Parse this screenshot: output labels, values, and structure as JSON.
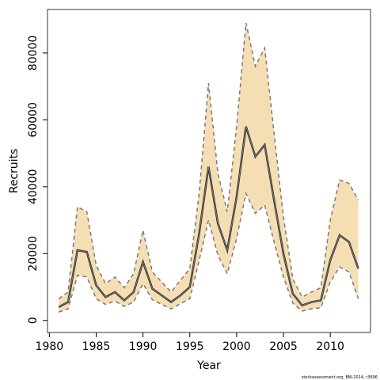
{
  "chart_data": {
    "type": "line",
    "xlabel": "Year",
    "ylabel": "Recruits",
    "footnote": "stockassessment.org, BW-2014, r3696",
    "x": [
      1981,
      1982,
      1983,
      1984,
      1985,
      1986,
      1987,
      1988,
      1989,
      1990,
      1991,
      1992,
      1993,
      1994,
      1995,
      1996,
      1997,
      1998,
      1999,
      2000,
      2001,
      2002,
      2003,
      2004,
      2005,
      2006,
      2007,
      2008,
      2009,
      2010,
      2011,
      2012,
      2013
    ],
    "values": [
      4000,
      5500,
      21000,
      20500,
      10500,
      7000,
      8500,
      6000,
      8500,
      17500,
      9500,
      7500,
      5500,
      7500,
      10000,
      26000,
      46000,
      29000,
      21000,
      37000,
      58000,
      49000,
      52500,
      36000,
      20000,
      8000,
      4500,
      5500,
      6000,
      18000,
      25500,
      23500,
      15500
    ],
    "lower": [
      2500,
      3500,
      13500,
      13000,
      6500,
      4800,
      5800,
      4200,
      5500,
      11000,
      6200,
      4800,
      3500,
      5000,
      6500,
      18000,
      30000,
      19500,
      14000,
      24500,
      38000,
      32000,
      34500,
      23500,
      13000,
      5200,
      2800,
      3500,
      3800,
      11500,
      16000,
      14500,
      6500
    ],
    "upper": [
      6500,
      8500,
      34000,
      32500,
      16500,
      11000,
      13000,
      9800,
      14000,
      27000,
      14500,
      11500,
      8500,
      12000,
      15500,
      38000,
      71000,
      44000,
      32500,
      58000,
      89000,
      76000,
      81500,
      56000,
      31000,
      12500,
      7000,
      8500,
      9800,
      30000,
      42000,
      41000,
      36000
    ],
    "color": "#333333",
    "band_color": "#f5deb3",
    "band_edge_color": "#7a7a7a",
    "xlim": [
      1979.8,
      2014.3
    ],
    "ylim": [
      -3600,
      93000
    ],
    "xticks": [
      1980,
      1985,
      1990,
      1995,
      2000,
      2005,
      2010
    ],
    "yticks": [
      0,
      20000,
      40000,
      60000,
      80000
    ]
  }
}
